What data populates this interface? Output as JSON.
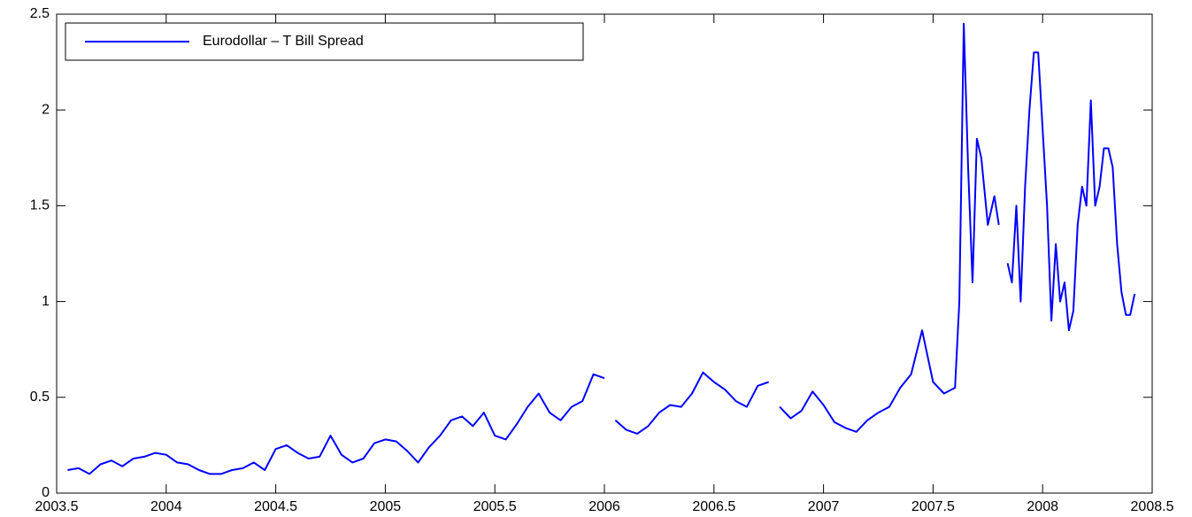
{
  "chart_data": {
    "type": "line",
    "x": [
      2003.55,
      2003.6,
      2003.65,
      2003.7,
      2003.75,
      2003.8,
      2003.85,
      2003.9,
      2003.95,
      2004.0,
      2004.05,
      2004.1,
      2004.15,
      2004.2,
      2004.25,
      2004.3,
      2004.35,
      2004.4,
      2004.45,
      2004.5,
      2004.55,
      2004.6,
      2004.65,
      2004.7,
      2004.75,
      2004.8,
      2004.85,
      2004.9,
      2004.95,
      2005.0,
      2005.05,
      2005.1,
      2005.15,
      2005.2,
      2005.25,
      2005.3,
      2005.35,
      2005.4,
      2005.45,
      2005.5,
      2005.55,
      2005.6,
      2005.65,
      2005.7,
      2005.75,
      2005.8,
      2005.85,
      2005.9,
      2005.95,
      2006.0,
      2006.02,
      2006.05,
      2006.1,
      2006.15,
      2006.2,
      2006.25,
      2006.3,
      2006.35,
      2006.4,
      2006.45,
      2006.5,
      2006.55,
      2006.6,
      2006.65,
      2006.7,
      2006.75,
      2006.78,
      2006.8,
      2006.85,
      2006.9,
      2006.95,
      2007.0,
      2007.05,
      2007.1,
      2007.15,
      2007.2,
      2007.25,
      2007.3,
      2007.35,
      2007.4,
      2007.45,
      2007.5,
      2007.55,
      2007.6,
      2007.62,
      2007.64,
      2007.66,
      2007.68,
      2007.7,
      2007.72,
      2007.75,
      2007.78,
      2007.8,
      2007.82,
      2007.84,
      2007.86,
      2007.88,
      2007.9,
      2007.92,
      2007.94,
      2007.96,
      2007.98,
      2008.0,
      2008.02,
      2008.04,
      2008.06,
      2008.08,
      2008.1,
      2008.12,
      2008.14,
      2008.16,
      2008.18,
      2008.2,
      2008.22,
      2008.24,
      2008.26,
      2008.28,
      2008.3,
      2008.32,
      2008.34,
      2008.36,
      2008.38,
      2008.4,
      2008.42
    ],
    "series": [
      {
        "name": "Eurodollar – T Bill Spread",
        "color": "#0000ff",
        "values": [
          0.12,
          0.13,
          0.1,
          0.15,
          0.17,
          0.14,
          0.18,
          0.19,
          0.21,
          0.2,
          0.16,
          0.15,
          0.12,
          0.1,
          0.1,
          0.12,
          0.13,
          0.16,
          0.12,
          0.23,
          0.25,
          0.21,
          0.18,
          0.19,
          0.3,
          0.2,
          0.16,
          0.18,
          0.26,
          0.28,
          0.27,
          0.22,
          0.16,
          0.24,
          0.3,
          0.38,
          0.4,
          0.35,
          0.42,
          0.3,
          0.28,
          0.36,
          0.45,
          0.52,
          0.42,
          0.38,
          0.45,
          0.48,
          0.62,
          0.6,
          null,
          0.38,
          0.33,
          0.31,
          0.35,
          0.42,
          0.46,
          0.45,
          0.52,
          0.63,
          0.58,
          0.54,
          0.48,
          0.45,
          0.56,
          0.58,
          null,
          0.45,
          0.39,
          0.43,
          0.53,
          0.46,
          0.37,
          0.34,
          0.32,
          0.38,
          0.42,
          0.45,
          0.55,
          0.62,
          0.85,
          0.58,
          0.52,
          0.55,
          1.0,
          2.45,
          1.7,
          1.1,
          1.85,
          1.75,
          1.4,
          1.55,
          1.4,
          null,
          1.2,
          1.1,
          1.5,
          1.0,
          1.6,
          2.0,
          2.3,
          2.3,
          1.9,
          1.5,
          0.9,
          1.3,
          1.0,
          1.1,
          0.85,
          0.95,
          1.4,
          1.6,
          1.5,
          2.05,
          1.5,
          1.6,
          1.8,
          1.8,
          1.7,
          1.3,
          1.05,
          0.93,
          0.93,
          1.04
        ]
      }
    ],
    "xlim": [
      2003.5,
      2008.5
    ],
    "xticks": [
      2003.5,
      2004,
      2004.5,
      2005,
      2005.5,
      2006,
      2006.5,
      2007,
      2007.5,
      2008,
      2008.5
    ],
    "ylim": [
      0,
      2.5
    ],
    "yticks": [
      0,
      0.5,
      1,
      1.5,
      2,
      2.5
    ],
    "legend": "upper left",
    "grid": false
  }
}
